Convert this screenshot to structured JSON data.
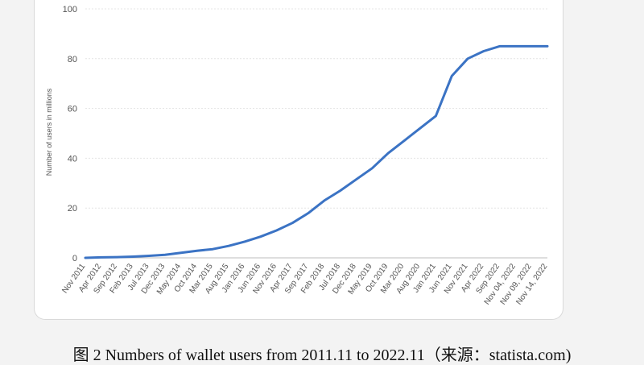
{
  "caption": "图 2 Numbers of wallet users from 2011.11 to 2022.11（来源：statista.com)",
  "chart_data": {
    "type": "line",
    "title": "",
    "xlabel": "",
    "ylabel": "Number of users in millions",
    "ylim": [
      0,
      100
    ],
    "yticks": [
      0,
      20,
      40,
      60,
      80,
      100
    ],
    "grid": true,
    "series_color": "#3b73c4",
    "xticks": [
      "Nov 2011",
      "Apr 2012",
      "Sep 2012",
      "Feb 2013",
      "Jul 2013",
      "Dec 2013",
      "May 2014",
      "Oct 2014",
      "Mar 2015",
      "Aug 2015",
      "Jan 2016",
      "Jun 2016",
      "Nov 2016",
      "Apr 2017",
      "Sep 2017",
      "Feb 2018",
      "Jul 2018",
      "Dec 2018",
      "May 2019",
      "Oct 2019",
      "Mar 2020",
      "Aug 2020",
      "Jan 2021",
      "Jun 2021",
      "Nov 2021",
      "Apr 2022",
      "Sep 2022",
      "Nov 04, 2022",
      "Nov 09, 2022",
      "Nov 14, 2022"
    ],
    "series": [
      {
        "values": [
          0,
          0.2,
          0.3,
          0.5,
          0.8,
          1.2,
          2,
          2.8,
          3.5,
          4.8,
          6.5,
          8.5,
          11,
          14,
          18,
          23,
          27,
          31.5,
          36,
          42,
          47,
          52,
          57,
          73,
          80,
          83,
          85,
          85,
          85,
          85
        ]
      }
    ]
  }
}
